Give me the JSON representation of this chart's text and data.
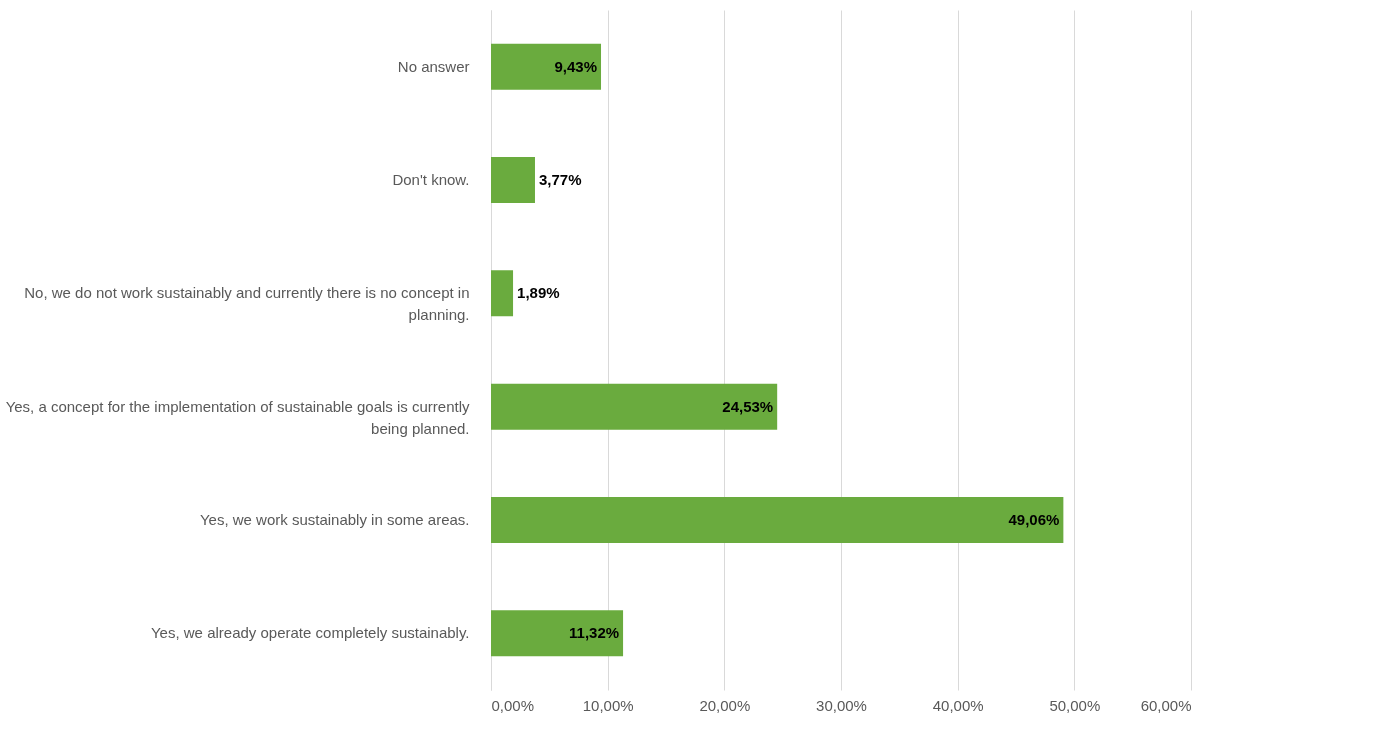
{
  "chart_data": {
    "type": "bar",
    "orientation": "horizontal",
    "categories": [
      "No answer",
      "Don't know.",
      "No, we do not work sustainably and currently there is no concept in planning.",
      "Yes, a concept for the implementation of sustainable goals is currently being planned.",
      "Yes, we work sustainably in some areas.",
      "Yes, we already operate completely sustainably."
    ],
    "values": [
      9.43,
      3.77,
      1.89,
      24.53,
      49.06,
      11.32
    ],
    "value_labels": [
      "9,43%",
      "3,77%",
      "1,89%",
      "24,53%",
      "49,06%",
      "11,32%"
    ],
    "color": "#6aab3e",
    "xlim": [
      0,
      60
    ],
    "xticks": [
      {
        "value": 0,
        "label": "0,00%"
      },
      {
        "value": 10,
        "label": "10,00%"
      },
      {
        "value": 20,
        "label": "20,00%"
      },
      {
        "value": 30,
        "label": "30,00%"
      },
      {
        "value": 40,
        "label": "40,00%"
      },
      {
        "value": 50,
        "label": "50,00%"
      },
      {
        "value": 60,
        "label": "60,00%"
      }
    ],
    "grid": "x"
  }
}
